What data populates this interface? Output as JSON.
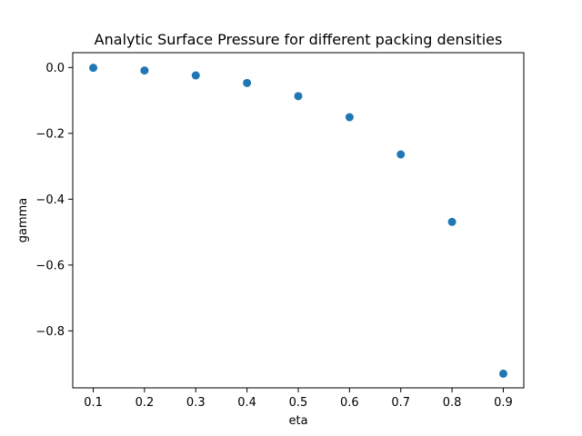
{
  "chart_data": {
    "type": "scatter",
    "title": "Analytic Surface Pressure for different packing densities",
    "xlabel": "eta",
    "ylabel": "gamma",
    "xlim": [
      0.06,
      0.94
    ],
    "ylim": [
      -0.973,
      0.045
    ],
    "x_ticks": [
      0.1,
      0.2,
      0.3,
      0.4,
      0.5,
      0.6,
      0.7,
      0.8,
      0.9
    ],
    "x_tick_labels": [
      "0.1",
      "0.2",
      "0.3",
      "0.4",
      "0.5",
      "0.6",
      "0.7",
      "0.8",
      "0.9"
    ],
    "y_ticks": [
      0.0,
      -0.2,
      -0.4,
      -0.6,
      -0.8
    ],
    "y_tick_labels": [
      "0.0",
      "−0.2",
      "−0.4",
      "−0.6",
      "−0.8"
    ],
    "grid": false,
    "marker_color": "#1f77b4",
    "series": [
      {
        "x": [
          0.1,
          0.2,
          0.3,
          0.4,
          0.5,
          0.6,
          0.7,
          0.8,
          0.9
        ],
        "y": [
          -0.001,
          -0.009,
          -0.024,
          -0.047,
          -0.087,
          -0.151,
          -0.264,
          -0.469,
          -0.93
        ]
      }
    ]
  }
}
